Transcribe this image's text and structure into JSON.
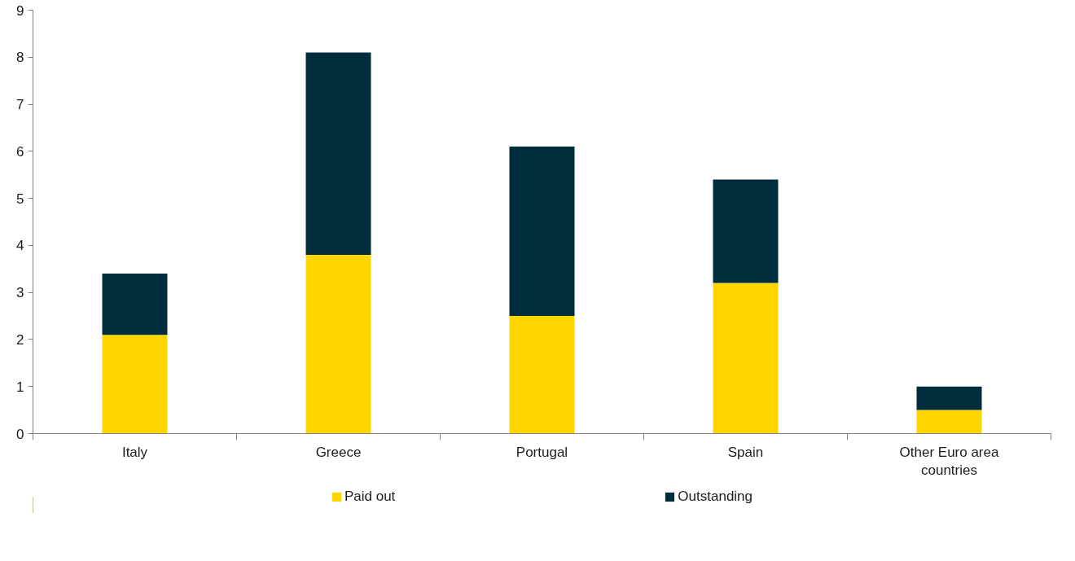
{
  "chart_data": {
    "type": "bar",
    "stacked": true,
    "categories": [
      "Italy",
      "Greece",
      "Portugal",
      "Spain",
      "Other Euro area countries"
    ],
    "series": [
      {
        "name": "Paid out",
        "color": "#ffd500",
        "values": [
          2.1,
          3.8,
          2.5,
          3.2,
          0.5
        ]
      },
      {
        "name": "Outstanding",
        "color": "#002d3c",
        "values": [
          1.3,
          4.3,
          3.6,
          2.2,
          0.5
        ]
      }
    ],
    "ylim": [
      0,
      9
    ],
    "yticks": [
      0,
      1,
      2,
      3,
      4,
      5,
      6,
      7,
      8,
      9
    ],
    "grid": false,
    "legend": "bottom"
  }
}
